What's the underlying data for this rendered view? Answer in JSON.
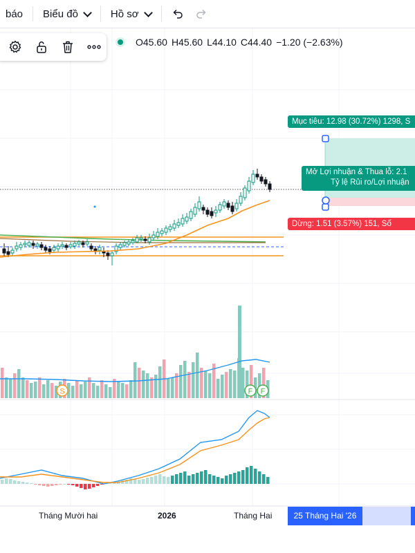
{
  "topbar": {
    "items": [
      {
        "label": "báo",
        "chevron": false
      },
      {
        "label": "Biểu đồ",
        "chevron": true
      },
      {
        "label": "Hồ sơ",
        "chevron": true
      }
    ],
    "undo_icon": "undo-icon",
    "redo_icon": "redo-icon"
  },
  "drawing_toolbar": {
    "icons": [
      "gear-icon",
      "unlock-icon",
      "trash-icon",
      "more-icon"
    ]
  },
  "legend": {
    "open": "O45.60",
    "high": "H45.60",
    "low": "L44.10",
    "close": "C44.40",
    "change": "−1.20 (−2.63%)",
    "status_color": "#089981"
  },
  "position_tool": {
    "target_label": "Mục tiêu: 12.98 (30.72%) 1298, S",
    "middle_line1": "Mở Lợi nhuận & Thua lỗ: 2.1",
    "middle_line2": "Tỷ lệ Rủi ro/Lợi nhuận",
    "stop_label": "Dừng: 1.51 (3.57%) 151, Số",
    "target_color": "#089981",
    "stop_color": "#f23645"
  },
  "time_axis": {
    "labels": [
      "Tháng Mười hai",
      "2026",
      "Tháng Hai"
    ],
    "cursor_date": "25 Tháng Hai '26"
  },
  "event_markers": [
    "S",
    "F",
    "F"
  ],
  "colors": {
    "up": "#089981",
    "down": "#131722",
    "vol_up": "#84cbbd",
    "vol_down": "#f3a3ad",
    "ma_fast": "#f7931a",
    "ma_slow": "#2196f3"
  }
}
